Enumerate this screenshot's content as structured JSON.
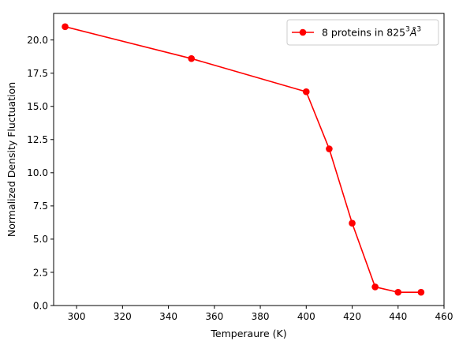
{
  "chart_data": {
    "type": "line",
    "title": "",
    "xlabel": "Temperaure (K)",
    "ylabel": "Normalized Density Fluctuation",
    "xlim": [
      290,
      460
    ],
    "ylim": [
      0,
      22
    ],
    "xticks": [
      300,
      320,
      340,
      360,
      380,
      400,
      420,
      440,
      460
    ],
    "yticks": [
      0.0,
      2.5,
      5.0,
      7.5,
      10.0,
      12.5,
      15.0,
      17.5,
      20.0
    ],
    "xtick_labels": [
      "300",
      "320",
      "340",
      "360",
      "380",
      "400",
      "420",
      "440",
      "460"
    ],
    "ytick_labels": [
      "0.0",
      "2.5",
      "5.0",
      "7.5",
      "10.0",
      "12.5",
      "15.0",
      "17.5",
      "20.0"
    ],
    "grid": false,
    "legend_position": "top-right",
    "series": [
      {
        "name": "8 proteins in 825³Å³",
        "legend_main": "8 proteins in 825",
        "legend_sup1": "3",
        "legend_mid": "Å",
        "legend_sup2": "3",
        "color": "#ff0000",
        "marker": "circle",
        "x": [
          295,
          350,
          400,
          410,
          420,
          430,
          440,
          450
        ],
        "y": [
          21.0,
          18.6,
          16.1,
          11.8,
          6.2,
          1.4,
          1.0,
          1.0
        ]
      }
    ]
  }
}
